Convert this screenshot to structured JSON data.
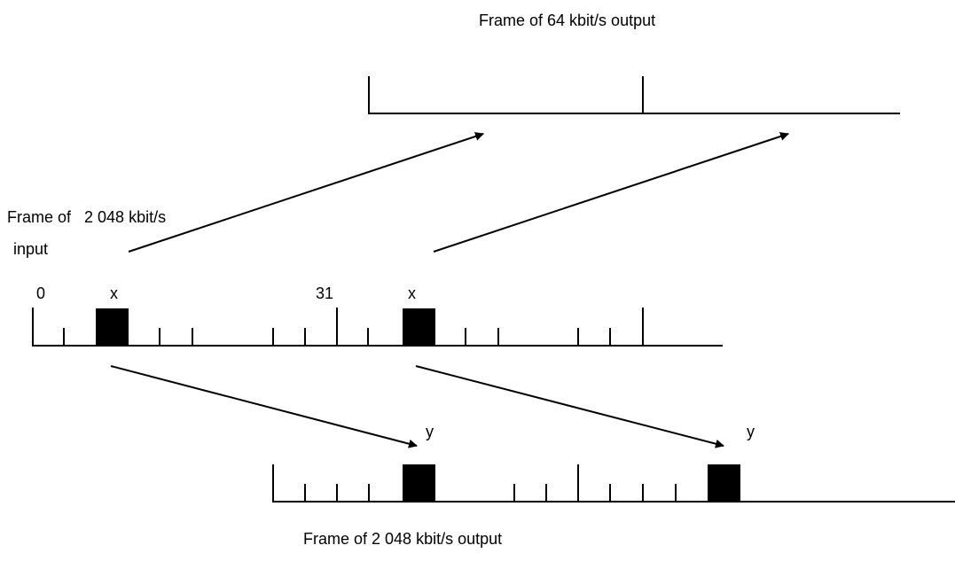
{
  "labels": {
    "output_64_title": "Frame of 64 kbit/s output",
    "input_title_line1": "Frame of   2 048 kbit/s",
    "input_title_line2": "input",
    "output_2048_title": "Frame of 2 048 kbit/s output",
    "slot_0": "0",
    "slot_x_first": "x",
    "slot_31": "31",
    "slot_x_second": "x",
    "slot_y_first": "y",
    "slot_y_second": "y"
  },
  "colors": {
    "line": "#000000",
    "slot_fill": "#000000",
    "background": "#ffffff"
  }
}
